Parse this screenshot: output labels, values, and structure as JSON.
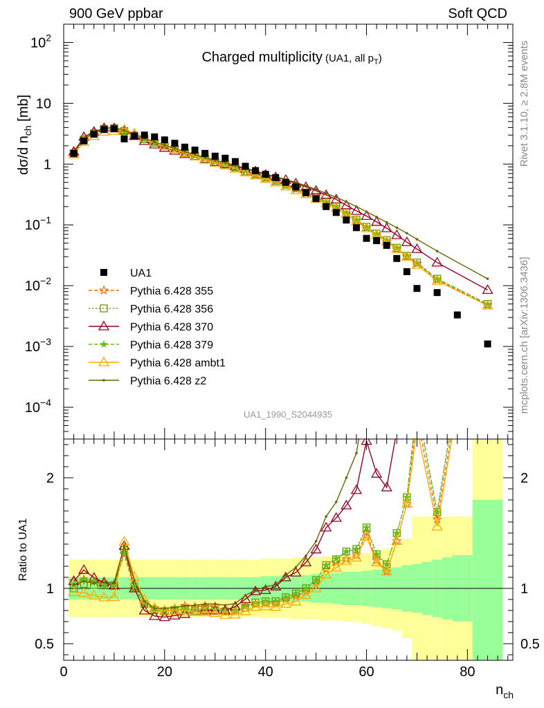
{
  "header": {
    "left": "900 GeV ppbar",
    "right": "Soft QCD"
  },
  "side": {
    "top": "Rivet 3.1.10, ≥ 2.8M events",
    "bottom": "mcplots.cern.ch [arXiv:1306.3436]"
  },
  "main_title": {
    "text": "Charged multiplicity",
    "sub": "(UA1, all p",
    "sub_idx": "T",
    "sub_end": ")"
  },
  "analysis_id": "UA1_1990_S2044935",
  "ylabel": {
    "base": "dσ/d n",
    "sub": "ch",
    "unit": " [mb]"
  },
  "ratio_ylabel": "Ratio to UA1",
  "xlabel": {
    "base": "n",
    "sub": "ch"
  },
  "chart_data": {
    "type": "line",
    "x_range": [
      0,
      89
    ],
    "main_y_log": true,
    "main_y_range": [
      3e-05,
      200
    ],
    "main_y_ticks": [
      {
        "v": 0.0001,
        "base": "10",
        "exp": "−4"
      },
      {
        "v": 0.001,
        "base": "10",
        "exp": "−3"
      },
      {
        "v": 0.01,
        "base": "10",
        "exp": "−2"
      },
      {
        "v": 0.1,
        "base": "10",
        "exp": "−1"
      },
      {
        "v": 1,
        "base": "1",
        "exp": ""
      },
      {
        "v": 10,
        "base": "10",
        "exp": ""
      },
      {
        "v": 100,
        "base": "10",
        "exp": "2"
      }
    ],
    "ratio_y_range": [
      0.35,
      2.35
    ],
    "ratio_y_ticks": [
      "0.5",
      "1",
      "2"
    ],
    "ratio_y_tick_values": [
      0.5,
      1,
      2
    ],
    "x_ticks": [
      "0",
      "20",
      "40",
      "60",
      "80"
    ],
    "x_tick_values": [
      0,
      20,
      40,
      60,
      80
    ],
    "data": {
      "name": "UA1",
      "x": [
        2,
        4,
        6,
        8,
        10,
        12,
        14,
        16,
        18,
        20,
        22,
        24,
        26,
        28,
        30,
        32,
        34,
        36,
        38,
        40,
        42,
        44,
        46,
        48,
        50,
        52,
        54,
        56,
        58,
        60,
        62,
        64,
        66,
        68,
        70,
        74,
        78,
        84
      ],
      "y": [
        1.5,
        2.4,
        3.1,
        3.7,
        3.8,
        2.6,
        2.9,
        3.0,
        2.8,
        2.5,
        2.2,
        1.9,
        1.7,
        1.5,
        1.35,
        1.25,
        1.1,
        0.92,
        0.78,
        0.68,
        0.6,
        0.5,
        0.42,
        0.34,
        0.27,
        0.2,
        0.16,
        0.12,
        0.09,
        0.06,
        0.055,
        0.046,
        0.028,
        0.017,
        0.009,
        0.0077,
        0.0033,
        0.0011
      ]
    },
    "x_mc": [
      2,
      4,
      6,
      8,
      10,
      12,
      14,
      16,
      18,
      20,
      22,
      24,
      26,
      28,
      30,
      32,
      34,
      36,
      38,
      40,
      42,
      44,
      46,
      48,
      50,
      52,
      54,
      56,
      58,
      60,
      62,
      64,
      66,
      68,
      70,
      74,
      84
    ],
    "series": [
      {
        "name": "Pythia 6.428 355",
        "color": "#ff6600",
        "dash": "5,3",
        "marker": "star",
        "y": [
          1.6,
          2.6,
          3.3,
          3.9,
          3.9,
          3.4,
          2.9,
          2.6,
          2.3,
          2.0,
          1.8,
          1.6,
          1.42,
          1.26,
          1.13,
          1.0,
          0.88,
          0.77,
          0.67,
          0.59,
          0.52,
          0.45,
          0.39,
          0.33,
          0.28,
          0.234,
          0.198,
          0.152,
          0.117,
          0.09,
          0.069,
          0.053,
          0.04,
          0.03,
          0.023,
          0.0125,
          0.0048
        ]
      },
      {
        "name": "Pythia 6.428 356",
        "color": "#669900",
        "dash": "2,3",
        "marker": "square",
        "y": [
          1.5,
          2.5,
          3.2,
          3.8,
          3.9,
          3.5,
          2.95,
          2.58,
          2.25,
          1.98,
          1.77,
          1.55,
          1.36,
          1.22,
          1.08,
          0.99,
          0.88,
          0.76,
          0.68,
          0.6,
          0.53,
          0.46,
          0.4,
          0.34,
          0.29,
          0.242,
          0.202,
          0.16,
          0.122,
          0.093,
          0.072,
          0.056,
          0.042,
          0.031,
          0.024,
          0.013,
          0.005
        ]
      },
      {
        "name": "Pythia 6.428 370",
        "color": "#990022",
        "dash": "",
        "marker": "triangle",
        "y": [
          1.6,
          2.8,
          3.4,
          3.9,
          3.9,
          3.6,
          2.9,
          2.4,
          2.1,
          1.85,
          1.66,
          1.46,
          1.34,
          1.2,
          1.08,
          1.0,
          0.92,
          0.83,
          0.76,
          0.67,
          0.61,
          0.55,
          0.48,
          0.42,
          0.365,
          0.31,
          0.262,
          0.21,
          0.17,
          0.14,
          0.112,
          0.088,
          0.068,
          0.052,
          0.04,
          0.024,
          0.0085
        ]
      },
      {
        "name": "Pythia 6.428 379",
        "color": "#66bb22",
        "dash": "5,3",
        "marker": "smallstar",
        "y": [
          1.55,
          2.6,
          3.3,
          3.8,
          3.9,
          3.45,
          2.95,
          2.6,
          2.25,
          2.0,
          1.79,
          1.56,
          1.37,
          1.23,
          1.09,
          0.99,
          0.88,
          0.77,
          0.68,
          0.6,
          0.53,
          0.46,
          0.4,
          0.34,
          0.29,
          0.242,
          0.203,
          0.16,
          0.122,
          0.093,
          0.072,
          0.056,
          0.042,
          0.031,
          0.024,
          0.013,
          0.005
        ]
      },
      {
        "name": "Pythia 6.428 ambt1",
        "color": "#ffaa00",
        "dash": "",
        "marker": "triangle",
        "y": [
          1.45,
          2.3,
          2.9,
          3.4,
          3.5,
          3.7,
          3.2,
          2.7,
          2.3,
          2.0,
          1.76,
          1.52,
          1.34,
          1.18,
          1.05,
          0.95,
          0.84,
          0.73,
          0.65,
          0.57,
          0.5,
          0.43,
          0.37,
          0.32,
          0.27,
          0.225,
          0.19,
          0.15,
          0.115,
          0.088,
          0.068,
          0.053,
          0.04,
          0.03,
          0.022,
          0.012,
          0.0047
        ]
      },
      {
        "name": "Pythia 6.428 z2",
        "color": "#666600",
        "dash": "",
        "marker": "dot",
        "y": [
          1.55,
          2.55,
          3.25,
          3.9,
          4.0,
          3.6,
          3.1,
          2.65,
          2.3,
          2.05,
          1.82,
          1.6,
          1.44,
          1.29,
          1.16,
          1.06,
          0.95,
          0.86,
          0.77,
          0.69,
          0.62,
          0.56,
          0.5,
          0.44,
          0.385,
          0.33,
          0.285,
          0.24,
          0.2,
          0.165,
          0.135,
          0.11,
          0.09,
          0.073,
          0.058,
          0.037,
          0.013
        ]
      }
    ],
    "bands": {
      "edges": [
        1,
        3,
        5,
        7,
        9,
        11,
        13,
        15,
        17,
        19,
        21,
        23,
        25,
        27,
        29,
        31,
        33,
        35,
        37,
        39,
        41,
        43,
        45,
        47,
        49,
        51,
        53,
        55,
        57,
        59,
        61,
        63,
        65,
        67,
        69,
        71,
        73,
        75,
        77,
        79,
        81,
        87
      ],
      "stat": [
        0.1,
        0.1,
        0.1,
        0.1,
        0.1,
        0.1,
        0.1,
        0.1,
        0.1,
        0.1,
        0.1,
        0.1,
        0.1,
        0.1,
        0.1,
        0.1,
        0.1,
        0.1,
        0.1,
        0.11,
        0.11,
        0.12,
        0.12,
        0.12,
        0.13,
        0.13,
        0.14,
        0.15,
        0.15,
        0.16,
        0.17,
        0.18,
        0.19,
        0.21,
        0.22,
        0.24,
        0.26,
        0.28,
        0.3,
        0.3,
        0.8
      ],
      "total": [
        0.26,
        0.26,
        0.26,
        0.26,
        0.26,
        0.26,
        0.26,
        0.26,
        0.26,
        0.26,
        0.26,
        0.26,
        0.26,
        0.26,
        0.26,
        0.26,
        0.26,
        0.26,
        0.26,
        0.27,
        0.27,
        0.27,
        0.28,
        0.28,
        0.28,
        0.29,
        0.29,
        0.3,
        0.3,
        0.32,
        0.34,
        0.36,
        0.38,
        0.45,
        0.65,
        0.65,
        0.65,
        0.65,
        0.65,
        0.65,
        1.5
      ],
      "stat_color": "#99ff99",
      "total_color": "#ffff99"
    }
  }
}
